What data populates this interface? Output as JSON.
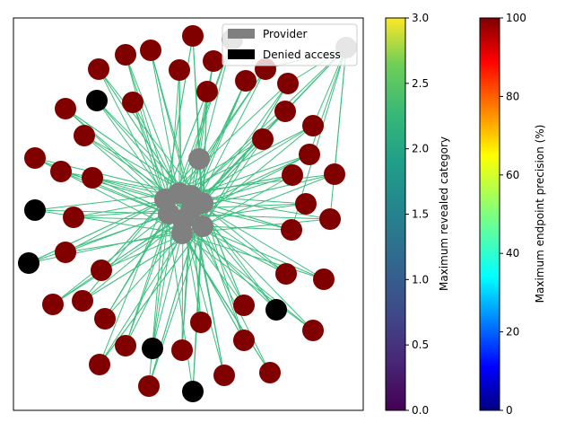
{
  "chart_data": {
    "type": "network",
    "legend": {
      "placement": "top-right",
      "entries": [
        {
          "label": "Provider",
          "color": "#808080"
        },
        {
          "label": "Denied access",
          "color": "#000000"
        }
      ]
    },
    "edge_color": "#3dbf7f",
    "node_colors": {
      "provider": "#808080",
      "denied": "#000000",
      "max_precision": "#800000"
    },
    "colorbars": [
      {
        "label": "Maximum revealed category",
        "colormap": "viridis",
        "range": [
          0,
          3
        ],
        "ticks": [
          "0.0",
          "0.5",
          "1.0",
          "1.5",
          "2.0",
          "2.5",
          "3.0"
        ]
      },
      {
        "label": "Maximum endpoint precision (%)",
        "colormap": "jet",
        "range": [
          0,
          100
        ],
        "ticks": [
          "0",
          "20",
          "40",
          "60",
          "80",
          "100"
        ]
      }
    ]
  }
}
